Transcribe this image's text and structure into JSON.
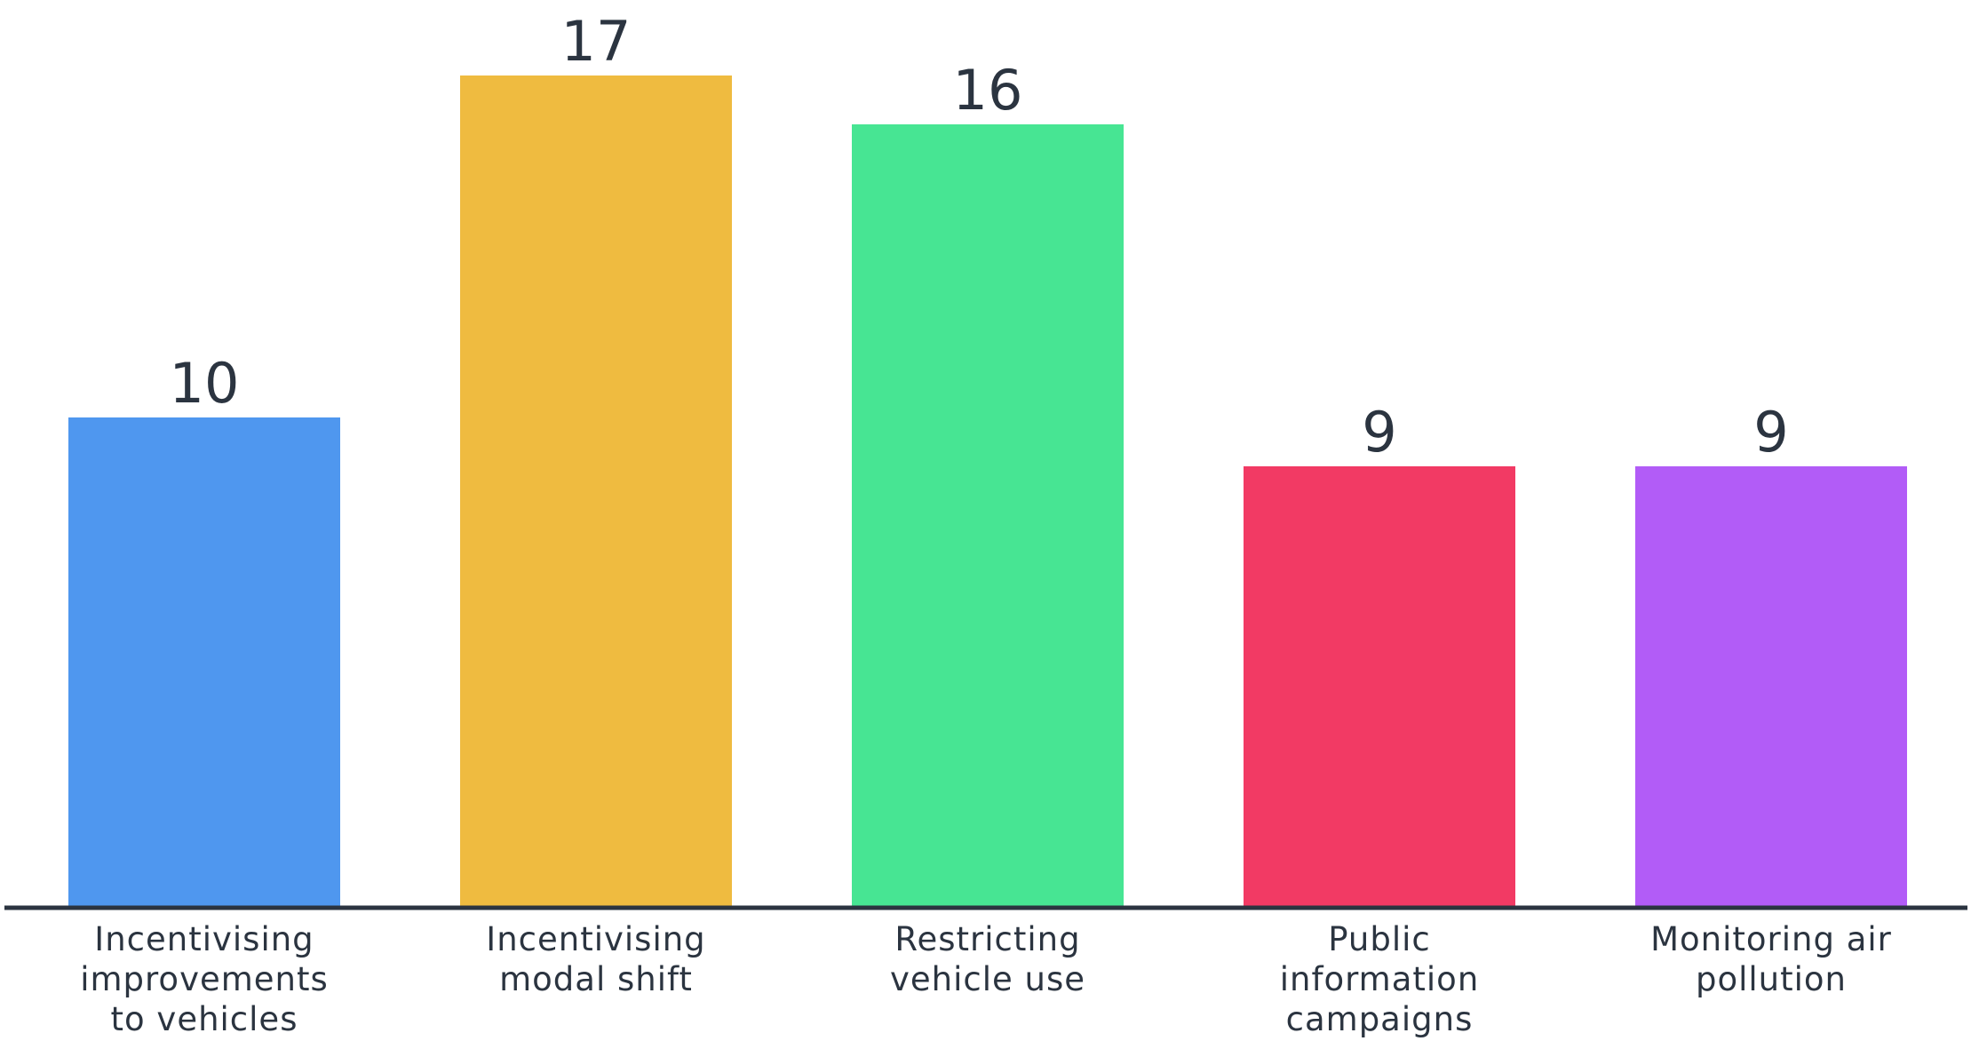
{
  "chart_data": {
    "type": "bar",
    "title": "",
    "xlabel": "",
    "ylabel": "",
    "ylim": [
      0,
      17
    ],
    "grid": false,
    "legend": "none",
    "categories": [
      "Incentivising improvements to vehicles",
      "Incentivising modal shift",
      "Restricting vehicle use",
      "Public information campaigns",
      "Monitoring air pollution"
    ],
    "category_lines": [
      [
        "Incentivising",
        "improvements",
        "to vehicles"
      ],
      [
        "Incentivising",
        "modal shift"
      ],
      [
        "Restricting",
        "vehicle use"
      ],
      [
        "Public",
        "information",
        "campaigns"
      ],
      [
        "Monitoring air",
        "pollution"
      ]
    ],
    "values": [
      10,
      17,
      16,
      9,
      9
    ],
    "value_labels": [
      "10",
      "17",
      "16",
      "9",
      "9"
    ],
    "colors": [
      "#4f97ef",
      "#efbb40",
      "#47e593",
      "#f23a64",
      "#b25cf7"
    ],
    "axis_color": "#2b3440"
  }
}
